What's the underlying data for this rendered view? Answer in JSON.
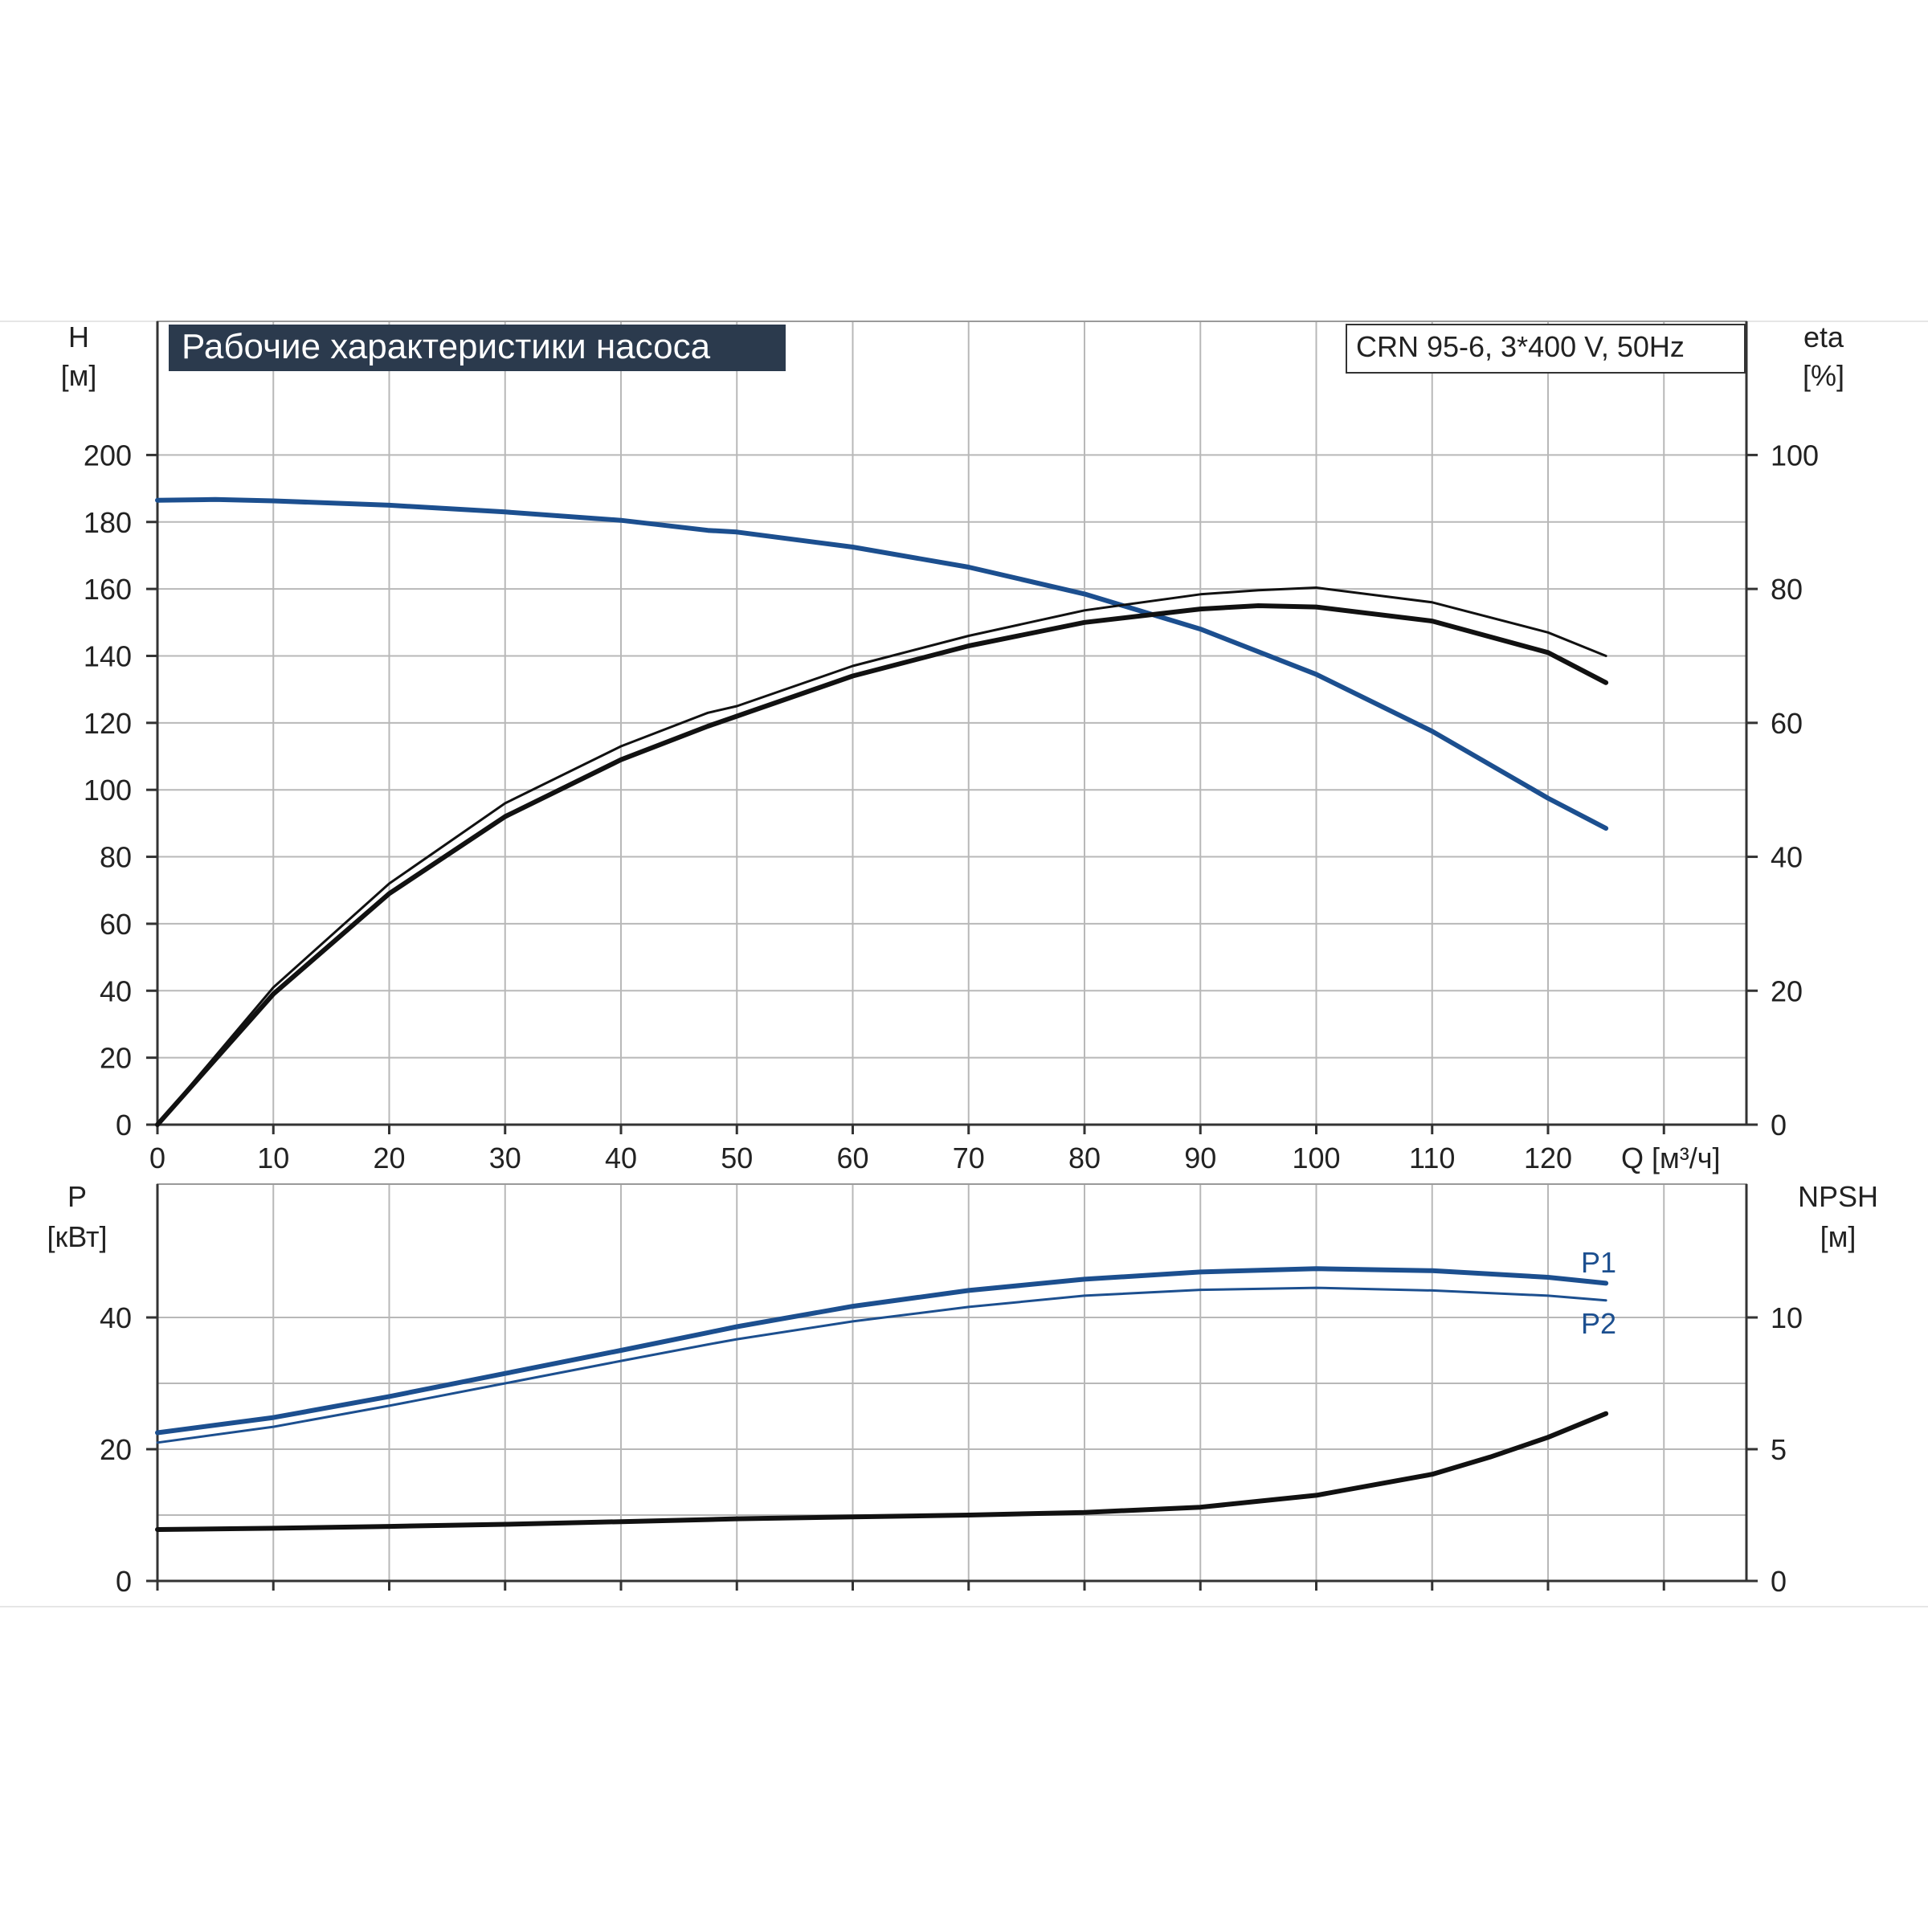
{
  "chart_data": [
    {
      "type": "line",
      "title": "Рабочие характеристики насоса",
      "model_label": "CRN 95-6, 3*400 V, 50Hz",
      "xlabel": "Q [м³/ч]",
      "xlim": [
        0,
        130
      ],
      "xticks": [
        "0",
        "10",
        "20",
        "30",
        "40",
        "50",
        "60",
        "70",
        "80",
        "90",
        "100",
        "110",
        "120"
      ],
      "left_axis": {
        "label_top": "H",
        "label_unit": "[м]",
        "ylim": [
          0,
          200
        ],
        "ticks": [
          "0",
          "20",
          "40",
          "60",
          "80",
          "100",
          "120",
          "140",
          "160",
          "180",
          "200"
        ]
      },
      "right_axis": {
        "label_top": "eta",
        "label_unit": "[%]",
        "ylim": [
          0,
          100
        ],
        "ticks": [
          "0",
          "20",
          "40",
          "60",
          "80",
          "100"
        ]
      },
      "grid": true,
      "colors": {
        "blue": "#1c4f8f",
        "black": "#111111",
        "grid": "#b8b8b8",
        "title_bg": "#2b3a4d"
      },
      "series": [
        {
          "axis": "left",
          "color": "blue",
          "width": "thick",
          "x": [
            0,
            5,
            10,
            20,
            30,
            40,
            47.5,
            50,
            60,
            70,
            80,
            90,
            100,
            110,
            120,
            125
          ],
          "y": [
            186.5,
            186.7,
            186.3,
            185,
            183,
            180.5,
            177.5,
            177,
            172.5,
            166.5,
            158.5,
            148,
            134.5,
            117.5,
            97.5,
            88.5
          ]
        },
        {
          "axis": "right",
          "color": "black",
          "width": "thin",
          "x": [
            0,
            10,
            20,
            30,
            40,
            47.5,
            50,
            60,
            70,
            80,
            90,
            95,
            100,
            110,
            120,
            125
          ],
          "y": [
            0,
            20.5,
            36,
            48,
            56.5,
            61.5,
            62.5,
            68.5,
            73,
            76.8,
            79.2,
            79.8,
            80.2,
            78,
            73.5,
            70
          ]
        },
        {
          "axis": "right",
          "color": "black",
          "width": "thick",
          "x": [
            0,
            10,
            20,
            30,
            40,
            47.5,
            50,
            60,
            70,
            80,
            90,
            95,
            100,
            110,
            120,
            125
          ],
          "y": [
            0,
            19.5,
            34.5,
            46,
            54.5,
            59.5,
            61,
            67,
            71.5,
            75,
            77,
            77.5,
            77.3,
            75.2,
            70.5,
            66
          ]
        }
      ]
    },
    {
      "type": "line",
      "xlim": [
        0,
        130
      ],
      "left_axis": {
        "label_top": "P",
        "label_unit": "[кВт]",
        "ylim": [
          0,
          50
        ],
        "ticks": [
          "0",
          "20",
          "40"
        ]
      },
      "right_axis": {
        "label_top": "NPSH",
        "label_unit": "[м]",
        "ylim": [
          0,
          12.5
        ],
        "ticks": [
          "0",
          "5",
          "10"
        ]
      },
      "grid": true,
      "series": [
        {
          "name": "P1",
          "axis": "left",
          "color": "blue",
          "width": "thick",
          "x": [
            0,
            10,
            20,
            30,
            40,
            47.5,
            50,
            60,
            70,
            80,
            90,
            100,
            110,
            120,
            125
          ],
          "y": [
            22.5,
            24.8,
            28,
            31.5,
            35,
            37.7,
            38.6,
            41.7,
            44.1,
            45.8,
            46.9,
            47.4,
            47.1,
            46.1,
            45.2
          ]
        },
        {
          "name": "P2",
          "axis": "left",
          "color": "blue",
          "width": "thin",
          "x": [
            0,
            10,
            20,
            30,
            40,
            47.5,
            50,
            60,
            70,
            80,
            90,
            100,
            110,
            120,
            125
          ],
          "y": [
            21,
            23.4,
            26.6,
            30,
            33.4,
            35.9,
            36.7,
            39.4,
            41.6,
            43.3,
            44.2,
            44.5,
            44.1,
            43.3,
            42.6
          ]
        },
        {
          "axis": "right",
          "color": "black",
          "width": "thick",
          "x": [
            0,
            10,
            20,
            30,
            40,
            47.5,
            50,
            60,
            70,
            80,
            90,
            100,
            110,
            115,
            120,
            125
          ],
          "y": [
            1.95,
            2.0,
            2.07,
            2.15,
            2.25,
            2.33,
            2.36,
            2.43,
            2.5,
            2.6,
            2.8,
            3.25,
            4.05,
            4.7,
            5.45,
            6.35
          ]
        }
      ]
    }
  ]
}
